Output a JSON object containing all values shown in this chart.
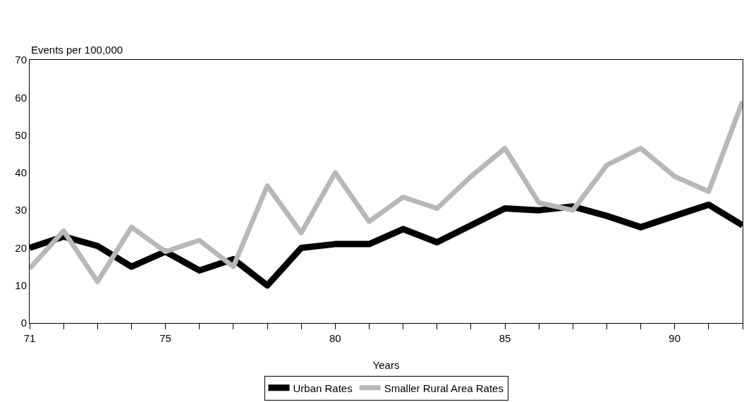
{
  "chart_data": {
    "type": "line",
    "xlabel": "Years",
    "ylabel": "Events per 100,000",
    "x": [
      71,
      72,
      73,
      74,
      75,
      76,
      77,
      78,
      79,
      80,
      81,
      82,
      83,
      84,
      85,
      86,
      87,
      88,
      89,
      90,
      91,
      92
    ],
    "series": [
      {
        "name": "Urban Rates",
        "color": "#000000",
        "values": [
          20,
          23,
          20.5,
          15,
          19,
          14,
          17,
          10,
          20,
          21,
          21,
          25,
          21.5,
          26,
          30.5,
          30,
          31,
          28.5,
          25.5,
          28.5,
          31.5,
          26
        ]
      },
      {
        "name": "Smaller Rural Area Rates",
        "color": "#b8b8b8",
        "values": [
          14.5,
          24.5,
          11,
          25.5,
          19,
          22,
          15,
          36.5,
          24,
          40,
          27,
          33.5,
          30.5,
          39,
          46.5,
          32,
          30,
          42,
          46.5,
          39,
          35,
          59
        ]
      }
    ],
    "xlim": [
      71,
      92
    ],
    "xticks": [
      71,
      {
        "value": 72,
        "label": null
      },
      {
        "value": 73,
        "label": null
      },
      {
        "value": 74,
        "label": null
      },
      75,
      {
        "value": 76,
        "label": null
      },
      {
        "value": 77,
        "label": null
      },
      {
        "value": 78,
        "label": null
      },
      {
        "value": 79,
        "label": null
      },
      80,
      {
        "value": 81,
        "label": null
      },
      {
        "value": 82,
        "label": null
      },
      {
        "value": 83,
        "label": null
      },
      {
        "value": 84,
        "label": null
      },
      85,
      {
        "value": 86,
        "label": null
      },
      {
        "value": 87,
        "label": null
      },
      {
        "value": 88,
        "label": null
      },
      {
        "value": 89,
        "label": null
      },
      90,
      {
        "value": 91,
        "label": null
      },
      {
        "value": 92,
        "label": null
      }
    ],
    "ylim": [
      0,
      70
    ],
    "yticks": [
      0,
      10,
      20,
      30,
      40,
      50,
      60,
      70
    ],
    "grid": false,
    "legend": "bottom",
    "marker": "none",
    "line_style": "solid"
  }
}
